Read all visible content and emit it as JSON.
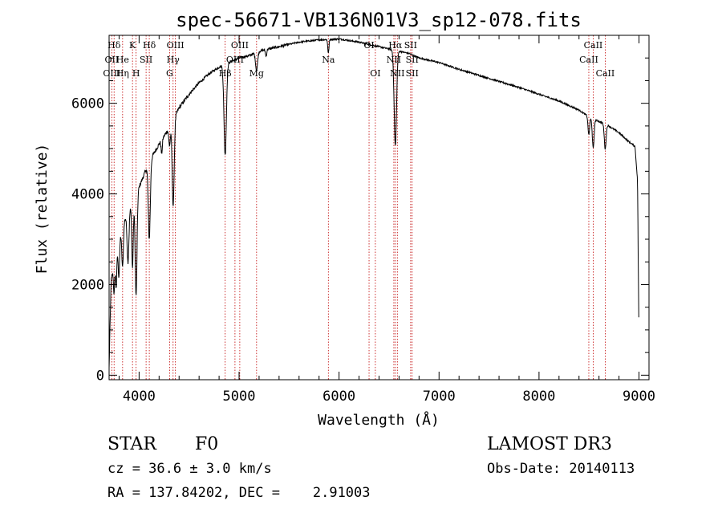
{
  "chart_data": {
    "type": "line",
    "title": "spec-56671-VB136N01V3_sp12-078.fits",
    "xlabel": "Wavelength (Å)",
    "ylabel": "Flux (relative)",
    "xlim": [
      3700,
      9100
    ],
    "ylim": [
      -100,
      7500
    ],
    "x_ticks": [
      4000,
      5000,
      6000,
      7000,
      8000,
      9000
    ],
    "y_ticks": [
      0,
      2000,
      4000,
      6000
    ],
    "x_tick_labels": [
      "4000",
      "5000",
      "6000",
      "7000",
      "8000",
      "9000"
    ],
    "y_tick_labels": [
      "0",
      "2000",
      "4000",
      "6000"
    ],
    "grid": false,
    "series": [
      {
        "name": "flux",
        "continuum": [
          [
            3700,
            150
          ],
          [
            3720,
            2100
          ],
          [
            3760,
            2500
          ],
          [
            3800,
            3000
          ],
          [
            3850,
            3400
          ],
          [
            3900,
            3650
          ],
          [
            3950,
            3800
          ],
          [
            4000,
            4150
          ],
          [
            4100,
            4700
          ],
          [
            4200,
            5100
          ],
          [
            4300,
            5450
          ],
          [
            4400,
            5900
          ],
          [
            4500,
            6200
          ],
          [
            4600,
            6450
          ],
          [
            4700,
            6650
          ],
          [
            4800,
            6800
          ],
          [
            4900,
            6900
          ],
          [
            5000,
            7000
          ],
          [
            5100,
            7050
          ],
          [
            5200,
            7150
          ],
          [
            5400,
            7250
          ],
          [
            5600,
            7350
          ],
          [
            5800,
            7400
          ],
          [
            6000,
            7420
          ],
          [
            6200,
            7350
          ],
          [
            6400,
            7250
          ],
          [
            6500,
            7200
          ],
          [
            6600,
            7150
          ],
          [
            6700,
            7100
          ],
          [
            6800,
            7000
          ],
          [
            7000,
            6900
          ],
          [
            7200,
            6750
          ],
          [
            7500,
            6550
          ],
          [
            7800,
            6350
          ],
          [
            8000,
            6200
          ],
          [
            8200,
            6050
          ],
          [
            8400,
            5850
          ],
          [
            8500,
            5700
          ],
          [
            8600,
            5600
          ],
          [
            8700,
            5500
          ],
          [
            8800,
            5350
          ],
          [
            8900,
            5150
          ],
          [
            8960,
            5050
          ],
          [
            8985,
            4300
          ],
          [
            9000,
            800
          ]
        ],
        "absorption_lines": [
          {
            "center": 3750,
            "depth": 600,
            "width": 6
          },
          {
            "center": 3771,
            "depth": 700,
            "width": 6
          },
          {
            "center": 3798,
            "depth": 800,
            "width": 7
          },
          {
            "center": 3835,
            "depth": 900,
            "width": 8
          },
          {
            "center": 3889,
            "depth": 1100,
            "width": 9
          },
          {
            "center": 3934,
            "depth": 1400,
            "width": 7
          },
          {
            "center": 3970,
            "depth": 2200,
            "width": 9
          },
          {
            "center": 4102,
            "depth": 1700,
            "width": 10
          },
          {
            "center": 4226,
            "depth": 300,
            "width": 6
          },
          {
            "center": 4305,
            "depth": 400,
            "width": 8
          },
          {
            "center": 4341,
            "depth": 1900,
            "width": 10
          },
          {
            "center": 4861,
            "depth": 2000,
            "width": 12
          },
          {
            "center": 5175,
            "depth": 400,
            "width": 10
          },
          {
            "center": 5270,
            "depth": 150,
            "width": 6
          },
          {
            "center": 5893,
            "depth": 300,
            "width": 6
          },
          {
            "center": 6563,
            "depth": 2100,
            "width": 12
          },
          {
            "center": 8498,
            "depth": 400,
            "width": 8
          },
          {
            "center": 8542,
            "depth": 650,
            "width": 9
          },
          {
            "center": 8662,
            "depth": 550,
            "width": 9
          }
        ]
      }
    ],
    "line_markers": [
      {
        "label": "Hδ",
        "wavelength": 3750,
        "row": 0
      },
      {
        "label": "OII",
        "wavelength": 3727,
        "row": 1
      },
      {
        "label": "OIII",
        "wavelength": 3727,
        "row": 2
      },
      {
        "label": "He",
        "wavelength": 3835,
        "row": 1
      },
      {
        "label": "Hη",
        "wavelength": 3835,
        "row": 2
      },
      {
        "label": "K",
        "wavelength": 3934,
        "row": 0
      },
      {
        "label": "H",
        "wavelength": 3970,
        "row": 2
      },
      {
        "label": "Hδ",
        "wavelength": 4102,
        "row": 0
      },
      {
        "label": "SII",
        "wavelength": 4070,
        "row": 1
      },
      {
        "label": "OIII",
        "wavelength": 4363,
        "row": 0
      },
      {
        "label": "Hγ",
        "wavelength": 4340,
        "row": 1
      },
      {
        "label": "G",
        "wavelength": 4305,
        "row": 2
      },
      {
        "label": "OIII",
        "wavelength": 5007,
        "row": 0
      },
      {
        "label": "OIII",
        "wavelength": 4959,
        "row": 1
      },
      {
        "label": "Hβ",
        "wavelength": 4861,
        "row": 2
      },
      {
        "label": "Mg",
        "wavelength": 5175,
        "row": 2
      },
      {
        "label": "Na",
        "wavelength": 5893,
        "row": 1
      },
      {
        "label": "OI",
        "wavelength": 6300,
        "row": 0
      },
      {
        "label": "OI",
        "wavelength": 6363,
        "row": 2
      },
      {
        "label": "Hα",
        "wavelength": 6563,
        "row": 0
      },
      {
        "label": "NII",
        "wavelength": 6548,
        "row": 1
      },
      {
        "label": "NII",
        "wavelength": 6583,
        "row": 2
      },
      {
        "label": "SII",
        "wavelength": 6716,
        "row": 0
      },
      {
        "label": "SII",
        "wavelength": 6731,
        "row": 1
      },
      {
        "label": "SII",
        "wavelength": 6731,
        "row": 2
      },
      {
        "label": "CaII",
        "wavelength": 8542,
        "row": 0
      },
      {
        "label": "CaII",
        "wavelength": 8498,
        "row": 1
      },
      {
        "label": "CaII",
        "wavelength": 8662,
        "row": 2
      }
    ]
  },
  "info": {
    "object_class": "STAR",
    "subclass": "F0",
    "survey": "LAMOST DR3",
    "redshift": "cz = 36.6 ± 3.0 km/s",
    "obs_date": "Obs-Date: 20140113",
    "coords": "RA = 137.84202, DEC =    2.91003"
  }
}
